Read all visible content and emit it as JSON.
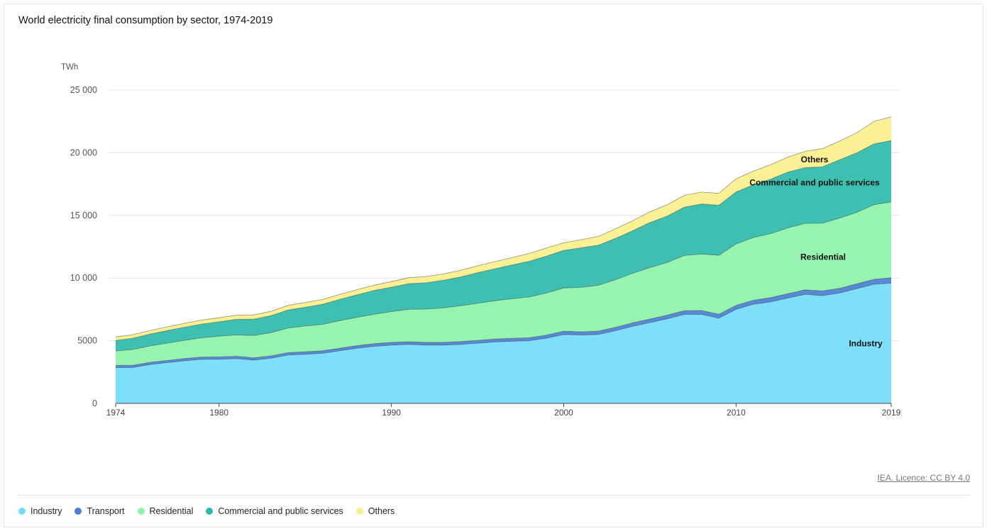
{
  "title": "World electricity final consumption by sector, 1974-2019",
  "source_link": "IEA. Licence: CC BY 4.0",
  "chart_data": {
    "type": "area",
    "stacked": true,
    "title": "World electricity final consumption by sector, 1974-2019",
    "ylabel": "TWh",
    "xlabel": "",
    "ylim": [
      0,
      25000
    ],
    "yticks": [
      0,
      5000,
      10000,
      15000,
      20000,
      25000
    ],
    "ytick_labels": [
      "0",
      "5000",
      "10 000",
      "15 000",
      "20 000",
      "25 000"
    ],
    "xticks": [
      1974,
      1980,
      1990,
      2000,
      2010,
      2019
    ],
    "xtick_labels": [
      "1974",
      "1980",
      "1990",
      "2000",
      "2010",
      "2019"
    ],
    "grid": true,
    "legend_position": "bottom-left",
    "x": [
      1974,
      1975,
      1976,
      1977,
      1978,
      1979,
      1980,
      1981,
      1982,
      1983,
      1984,
      1985,
      1986,
      1987,
      1988,
      1989,
      1990,
      1991,
      1992,
      1993,
      1994,
      1995,
      1996,
      1997,
      1998,
      1999,
      2000,
      2001,
      2002,
      2003,
      2004,
      2005,
      2006,
      2007,
      2008,
      2009,
      2010,
      2011,
      2012,
      2013,
      2014,
      2015,
      2016,
      2017,
      2018,
      2019
    ],
    "series": [
      {
        "name": "Industry",
        "color": "#73dcfa",
        "values": [
          2850,
          2870,
          3100,
          3250,
          3400,
          3520,
          3520,
          3570,
          3450,
          3600,
          3850,
          3920,
          4000,
          4200,
          4400,
          4550,
          4650,
          4700,
          4650,
          4650,
          4700,
          4800,
          4900,
          4950,
          5000,
          5200,
          5500,
          5450,
          5500,
          5800,
          6150,
          6450,
          6750,
          7100,
          7100,
          6800,
          7500,
          7900,
          8100,
          8400,
          8700,
          8600,
          8800,
          9150,
          9500,
          9600
        ]
      },
      {
        "name": "Transport",
        "color": "#4a7fd4",
        "values": [
          180,
          180,
          180,
          180,
          180,
          180,
          190,
          190,
          190,
          190,
          200,
          200,
          200,
          200,
          210,
          210,
          220,
          220,
          220,
          220,
          230,
          230,
          240,
          240,
          240,
          250,
          260,
          260,
          270,
          270,
          280,
          280,
          290,
          300,
          310,
          310,
          320,
          330,
          340,
          350,
          360,
          370,
          380,
          390,
          400,
          420
        ]
      },
      {
        "name": "Residential",
        "color": "#8ef3a9",
        "values": [
          1150,
          1250,
          1300,
          1380,
          1450,
          1530,
          1650,
          1700,
          1780,
          1850,
          1950,
          2050,
          2100,
          2200,
          2250,
          2350,
          2450,
          2580,
          2650,
          2750,
          2850,
          2950,
          3050,
          3150,
          3250,
          3350,
          3450,
          3550,
          3650,
          3800,
          3950,
          4100,
          4200,
          4400,
          4500,
          4700,
          4900,
          5000,
          5100,
          5250,
          5300,
          5400,
          5600,
          5700,
          5950,
          6050
        ]
      },
      {
        "name": "Commercial and public services",
        "color": "#2dbaaa",
        "values": [
          850,
          900,
          950,
          1000,
          1050,
          1100,
          1150,
          1250,
          1300,
          1350,
          1450,
          1500,
          1600,
          1700,
          1800,
          1900,
          1950,
          2050,
          2100,
          2200,
          2300,
          2450,
          2550,
          2700,
          2850,
          2950,
          3000,
          3150,
          3200,
          3300,
          3400,
          3600,
          3700,
          3850,
          4000,
          4000,
          4150,
          4200,
          4350,
          4450,
          4450,
          4500,
          4650,
          4750,
          4850,
          4900
        ]
      },
      {
        "name": "Others",
        "color": "#fbf08b",
        "values": [
          270,
          280,
          290,
          300,
          310,
          320,
          320,
          330,
          340,
          350,
          370,
          380,
          390,
          400,
          410,
          420,
          450,
          480,
          500,
          510,
          530,
          550,
          570,
          590,
          620,
          650,
          600,
          650,
          700,
          750,
          800,
          850,
          900,
          950,
          950,
          950,
          1050,
          1100,
          1150,
          1200,
          1300,
          1450,
          1500,
          1600,
          1800,
          1900
        ]
      }
    ],
    "annotations": [
      "Industry",
      "Residential",
      "Commercial and public services",
      "Others"
    ]
  }
}
